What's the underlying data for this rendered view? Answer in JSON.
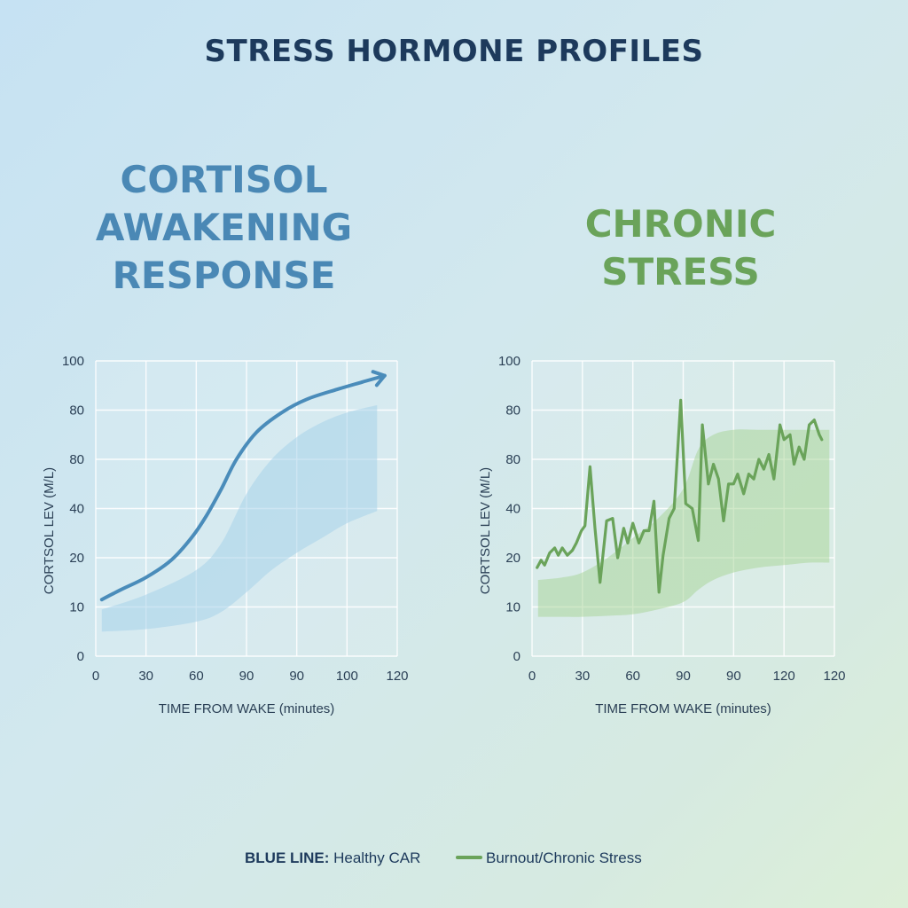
{
  "title": "STRESS HORMONE PROFILES",
  "panels": [
    {
      "heading": [
        "CORTISOL",
        "AWAKENING",
        "RESPONSE"
      ],
      "heading_color": "#4a88b5"
    },
    {
      "heading": [
        "CHRONIC",
        "STRESS"
      ],
      "heading_color": "#6aa35a"
    }
  ],
  "legend": {
    "blue_prefix": "BLUE LINE:",
    "blue_text": " Healthy CAR",
    "green_text": "Burnout/Chronic Stress"
  },
  "chart_data": [
    {
      "type": "line",
      "title": "CORTISOL AWAKENING RESPONSE",
      "xlabel": "TIME FROM WAKE (minutes)",
      "ylabel": "CORTSOL LEV  (M/L)",
      "x_tick_labels": [
        "0",
        "30",
        "60",
        "90",
        "90",
        "100",
        "120"
      ],
      "y_tick_labels": [
        "0",
        "10",
        "20",
        "40",
        "80",
        "80",
        "100"
      ],
      "xlim": [
        0,
        6
      ],
      "ylim": [
        0,
        6
      ],
      "grid": true,
      "line_color": "#4a8cba",
      "band_color": "#a8d2ea",
      "series": [
        {
          "name": "Healthy CAR",
          "x": [
            0.12,
            0.5,
            1.0,
            1.5,
            1.9,
            2.2,
            2.5,
            2.8,
            3.2,
            3.7,
            4.2,
            4.8,
            5.3,
            5.75
          ],
          "y": [
            1.15,
            1.35,
            1.6,
            1.95,
            2.4,
            2.85,
            3.4,
            4.0,
            4.55,
            4.95,
            5.22,
            5.42,
            5.57,
            5.7
          ]
        }
      ],
      "band": {
        "x": [
          0.12,
          1.0,
          2.0,
          2.5,
          3.0,
          3.5,
          4.0,
          4.5,
          5.0,
          5.6
        ],
        "upper": [
          0.95,
          1.25,
          1.75,
          2.3,
          3.3,
          4.0,
          4.45,
          4.75,
          4.95,
          5.1
        ],
        "lower": [
          0.5,
          0.55,
          0.7,
          0.9,
          1.3,
          1.75,
          2.1,
          2.4,
          2.7,
          2.95
        ]
      }
    },
    {
      "type": "line",
      "title": "CHRONIC STRESS",
      "xlabel": "TIME FROM WAKE (minutes)",
      "ylabel": "CORTSOL LEV  (M/L)",
      "x_tick_labels": [
        "0",
        "30",
        "60",
        "90",
        "90",
        "120",
        "120"
      ],
      "y_tick_labels": [
        "0",
        "10",
        "20",
        "40",
        "80",
        "80",
        "100"
      ],
      "xlim": [
        0,
        6
      ],
      "ylim": [
        0,
        6
      ],
      "grid": true,
      "line_color": "#6aa35a",
      "band_color": "#a6d494",
      "series": [
        {
          "name": "Burnout/Chronic Stress",
          "x": [
            0.1,
            0.18,
            0.25,
            0.35,
            0.45,
            0.52,
            0.6,
            0.7,
            0.8,
            0.88,
            0.98,
            1.05,
            1.15,
            1.25,
            1.35,
            1.48,
            1.6,
            1.7,
            1.82,
            1.9,
            2.0,
            2.12,
            2.22,
            2.32,
            2.42,
            2.52,
            2.6,
            2.72,
            2.82,
            2.95,
            3.05,
            3.18,
            3.3,
            3.38,
            3.5,
            3.6,
            3.7,
            3.8,
            3.9,
            4.0,
            4.08,
            4.2,
            4.3,
            4.4,
            4.5,
            4.6,
            4.7,
            4.8,
            4.92,
            5.0,
            5.12,
            5.2,
            5.3,
            5.4,
            5.5,
            5.6,
            5.7,
            5.75
          ],
          "y": [
            1.8,
            1.95,
            1.85,
            2.1,
            2.2,
            2.05,
            2.2,
            2.05,
            2.15,
            2.3,
            2.55,
            2.65,
            3.85,
            2.6,
            1.5,
            2.75,
            2.8,
            2.0,
            2.6,
            2.3,
            2.7,
            2.3,
            2.55,
            2.55,
            3.15,
            1.3,
            2.05,
            2.8,
            3.0,
            5.2,
            3.1,
            3.0,
            2.35,
            4.7,
            3.5,
            3.9,
            3.6,
            2.75,
            3.5,
            3.5,
            3.7,
            3.3,
            3.7,
            3.6,
            4.0,
            3.8,
            4.1,
            3.6,
            4.7,
            4.4,
            4.5,
            3.9,
            4.25,
            4.0,
            4.7,
            4.8,
            4.5,
            4.4
          ]
        }
      ],
      "band": {
        "x": [
          0.12,
          0.6,
          1.0,
          1.5,
          2.0,
          2.5,
          3.0,
          3.3,
          3.6,
          4.0,
          4.5,
          5.0,
          5.5,
          5.9
        ],
        "upper": [
          1.55,
          1.6,
          1.7,
          2.0,
          2.4,
          2.8,
          3.4,
          4.2,
          4.5,
          4.6,
          4.6,
          4.6,
          4.6,
          4.6
        ],
        "lower": [
          0.8,
          0.8,
          0.8,
          0.82,
          0.85,
          0.95,
          1.1,
          1.35,
          1.55,
          1.7,
          1.8,
          1.85,
          1.9,
          1.9
        ]
      }
    }
  ]
}
